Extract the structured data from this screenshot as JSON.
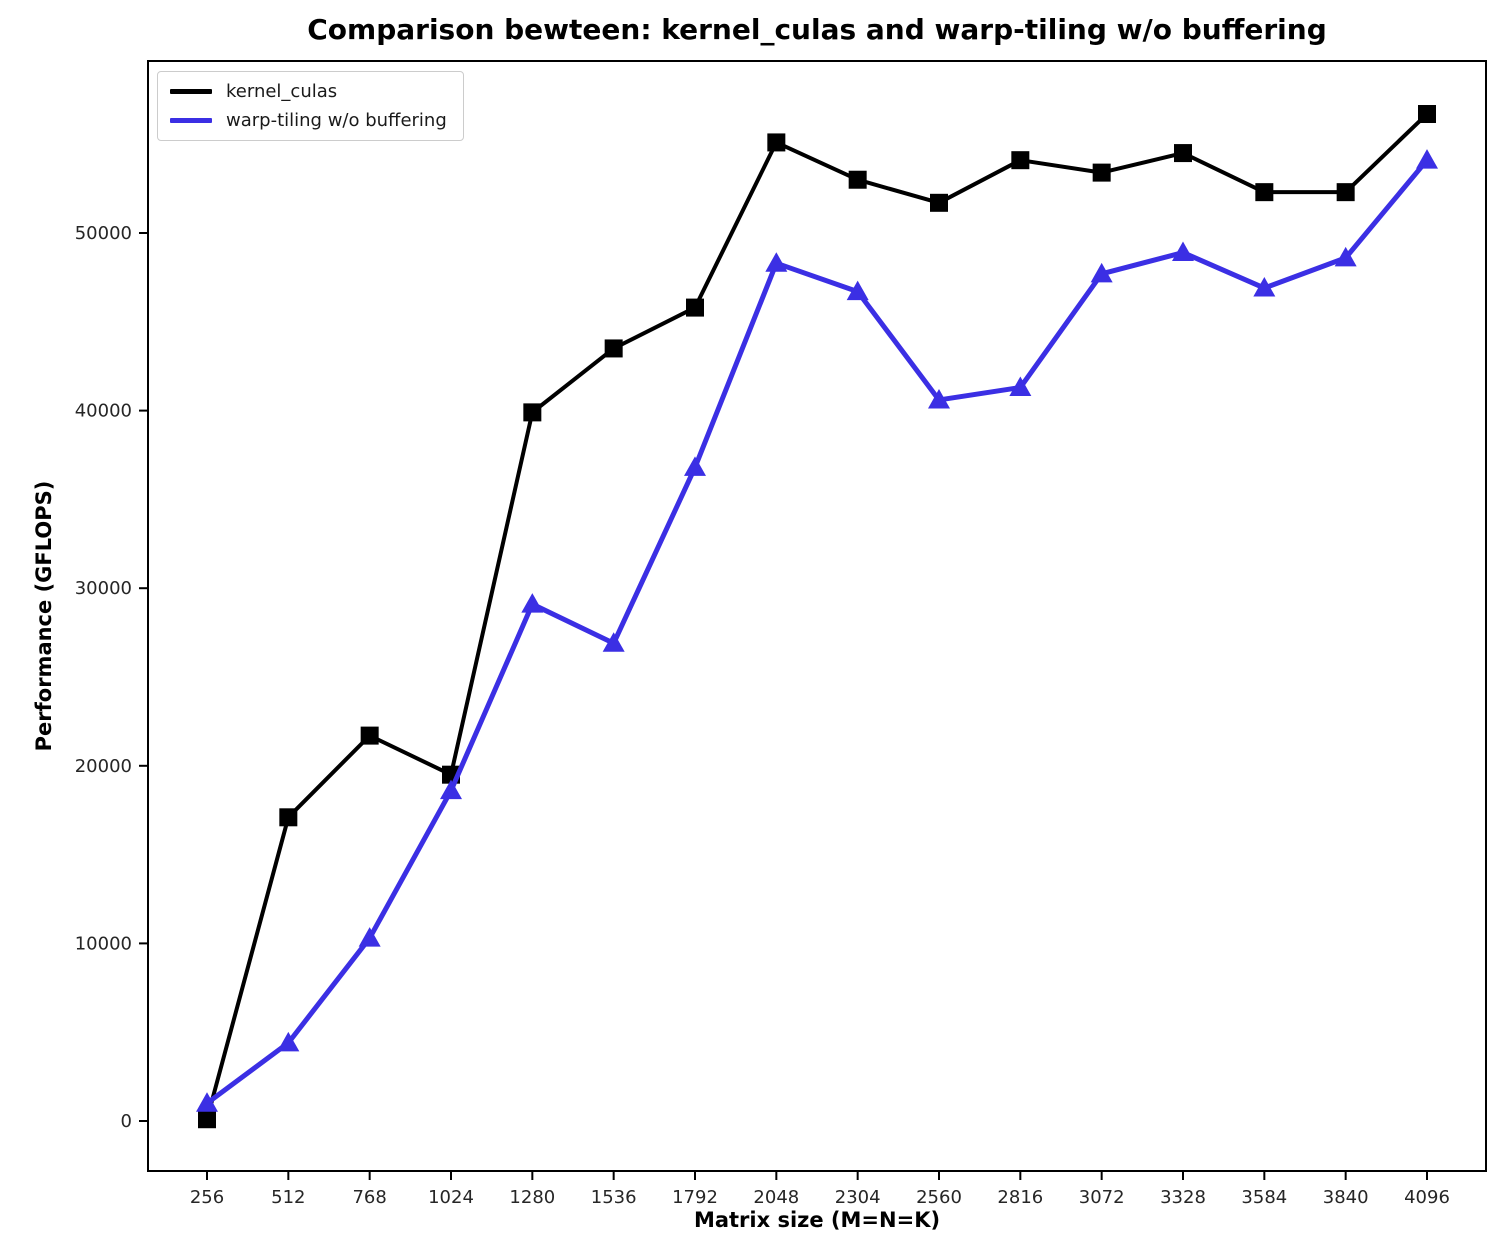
{
  "title": "Comparison bewteen: kernel_culas and warp-tiling w/o buffering",
  "chart_data": {
    "type": "line",
    "x": [
      256,
      512,
      768,
      1024,
      1280,
      1536,
      1792,
      2048,
      2304,
      2560,
      2816,
      3072,
      3328,
      3584,
      3840,
      4096
    ],
    "series": [
      {
        "name": "kernel_culas",
        "color": "#000000",
        "marker": "square",
        "values": [
          100,
          17100,
          21700,
          19500,
          39900,
          43500,
          45800,
          55100,
          53000,
          51700,
          54100,
          53400,
          54500,
          52300,
          52300,
          56700
        ]
      },
      {
        "name": "warp-tiling w/o buffering",
        "color": "#3b2fe4",
        "marker": "triangle",
        "values": [
          1000,
          4400,
          10300,
          18600,
          29100,
          26900,
          36800,
          48300,
          46700,
          40600,
          41300,
          47700,
          48900,
          46900,
          48600,
          54100
        ]
      }
    ],
    "xlabel": "Matrix size (M=N=K)",
    "ylabel": "Performance (GFLOPS)",
    "yticks": [
      0,
      10000,
      20000,
      30000,
      40000,
      50000
    ],
    "ytick_labels": [
      "0",
      "10000",
      "20000",
      "30000",
      "40000",
      "50000"
    ],
    "xtick_labels": [
      "256",
      "512",
      "768",
      "1024",
      "1280",
      "1536",
      "1792",
      "2048",
      "2304",
      "2560",
      "2816",
      "3072",
      "3328",
      "3584",
      "3840",
      "4096"
    ],
    "legend_position": "upper left",
    "grid": false,
    "axis_color": "#000000",
    "tick_label_color": "#262626"
  }
}
